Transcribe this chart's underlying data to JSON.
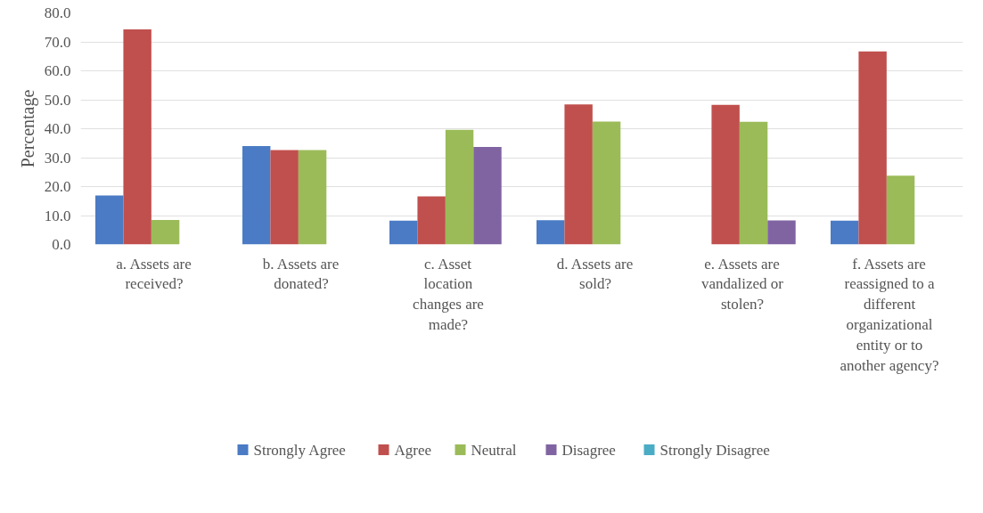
{
  "chart_data": {
    "type": "bar",
    "ylabel": "Percentage",
    "categories": [
      "a. Assets are received?",
      "b. Assets are donated?",
      "c. Asset location changes are made?",
      "d. Assets are sold?",
      "e. Assets are vandalized or stolen?",
      "f. Assets are reassigned to a different organizational entity or to another agency?"
    ],
    "series": [
      {
        "name": "Strongly Agree",
        "color": "#4a7bc4",
        "values": [
          16.9,
          34.0,
          8.2,
          8.4,
          0,
          8.2
        ]
      },
      {
        "name": "Agree",
        "color": "#c0504d",
        "values": [
          74.3,
          32.6,
          16.6,
          48.4,
          48.2,
          66.7
        ]
      },
      {
        "name": "Neutral",
        "color": "#9bbb59",
        "values": [
          8.5,
          32.6,
          39.6,
          42.5,
          42.4,
          23.8
        ]
      },
      {
        "name": "Disagree",
        "color": "#8064a2",
        "values": [
          0,
          0,
          33.7,
          0,
          8.3,
          0
        ]
      },
      {
        "name": "Strongly Disagree",
        "color": "#4bacc6",
        "values": [
          0,
          0,
          0,
          0,
          0,
          0
        ]
      }
    ],
    "ylim": [
      0,
      80
    ],
    "yticks": [
      {
        "value": 0,
        "label": "0.0"
      },
      {
        "value": 10,
        "label": "10.0"
      },
      {
        "value": 20,
        "label": "20.0"
      },
      {
        "value": 30,
        "label": "30.0"
      },
      {
        "value": 40,
        "label": "40.0"
      },
      {
        "value": 50,
        "label": "50.0"
      },
      {
        "value": 60,
        "label": "60.0"
      },
      {
        "value": 70,
        "label": "70.0"
      },
      {
        "value": 80,
        "label": "80.0"
      }
    ],
    "grid": "y",
    "legend": "bottom"
  }
}
